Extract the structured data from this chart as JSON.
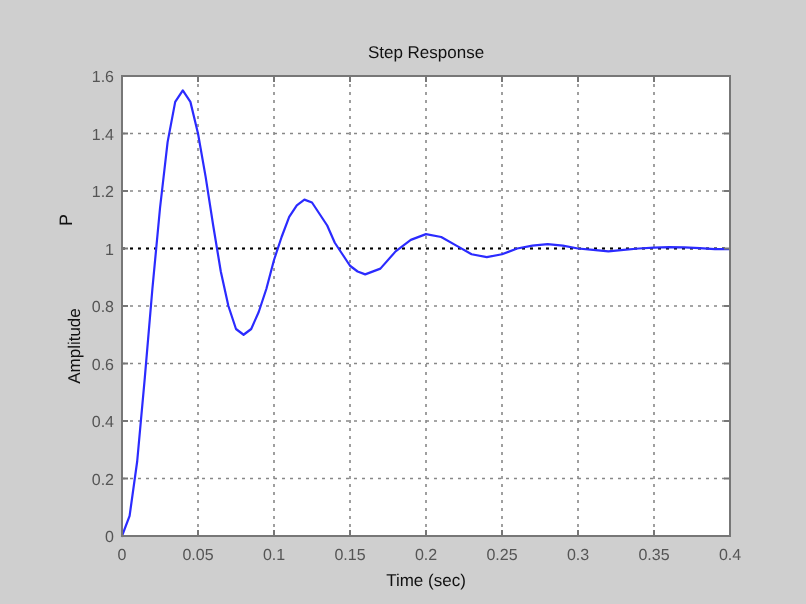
{
  "chart_data": {
    "type": "line",
    "title": "Step Response",
    "xlabel": "Time (sec)",
    "ylabel": "Amplitude",
    "annotations": [
      "P"
    ],
    "x": [
      0,
      0.005,
      0.01,
      0.015,
      0.02,
      0.025,
      0.03,
      0.035,
      0.04,
      0.045,
      0.05,
      0.055,
      0.06,
      0.065,
      0.07,
      0.075,
      0.08,
      0.085,
      0.09,
      0.095,
      0.1,
      0.105,
      0.11,
      0.115,
      0.12,
      0.125,
      0.13,
      0.135,
      0.14,
      0.145,
      0.15,
      0.155,
      0.16,
      0.17,
      0.18,
      0.19,
      0.2,
      0.21,
      0.22,
      0.23,
      0.24,
      0.25,
      0.26,
      0.27,
      0.28,
      0.29,
      0.3,
      0.31,
      0.32,
      0.33,
      0.34,
      0.35,
      0.36,
      0.37,
      0.38,
      0.39,
      0.4
    ],
    "series": [
      {
        "color": "#2b2bff",
        "values": [
          0,
          0.07,
          0.26,
          0.55,
          0.86,
          1.14,
          1.37,
          1.51,
          1.55,
          1.51,
          1.4,
          1.25,
          1.08,
          0.92,
          0.8,
          0.72,
          0.7,
          0.72,
          0.78,
          0.86,
          0.96,
          1.04,
          1.11,
          1.15,
          1.17,
          1.16,
          1.12,
          1.08,
          1.02,
          0.98,
          0.94,
          0.92,
          0.91,
          0.93,
          0.99,
          1.03,
          1.05,
          1.04,
          1.01,
          0.98,
          0.97,
          0.98,
          1,
          1.01,
          1.015,
          1.01,
          1,
          0.995,
          0.99,
          0.995,
          1,
          1.003,
          1.005,
          1.004,
          1.001,
          0.998,
          0.998
        ]
      }
    ],
    "xlim": [
      0,
      0.4
    ],
    "ylim": [
      0,
      1.6
    ],
    "xticks": [
      0,
      0.05,
      0.1,
      0.15,
      0.2,
      0.25,
      0.3,
      0.35,
      0.4
    ],
    "yticks": [
      0,
      0.2,
      0.4,
      0.6,
      0.8,
      1,
      1.2,
      1.4,
      1.6
    ],
    "grid": true,
    "line_style": "solid",
    "marker": "none",
    "ref_lines": [
      {
        "axis": "y",
        "value": 1,
        "color": "#000000",
        "line_style": "dotted"
      }
    ]
  }
}
